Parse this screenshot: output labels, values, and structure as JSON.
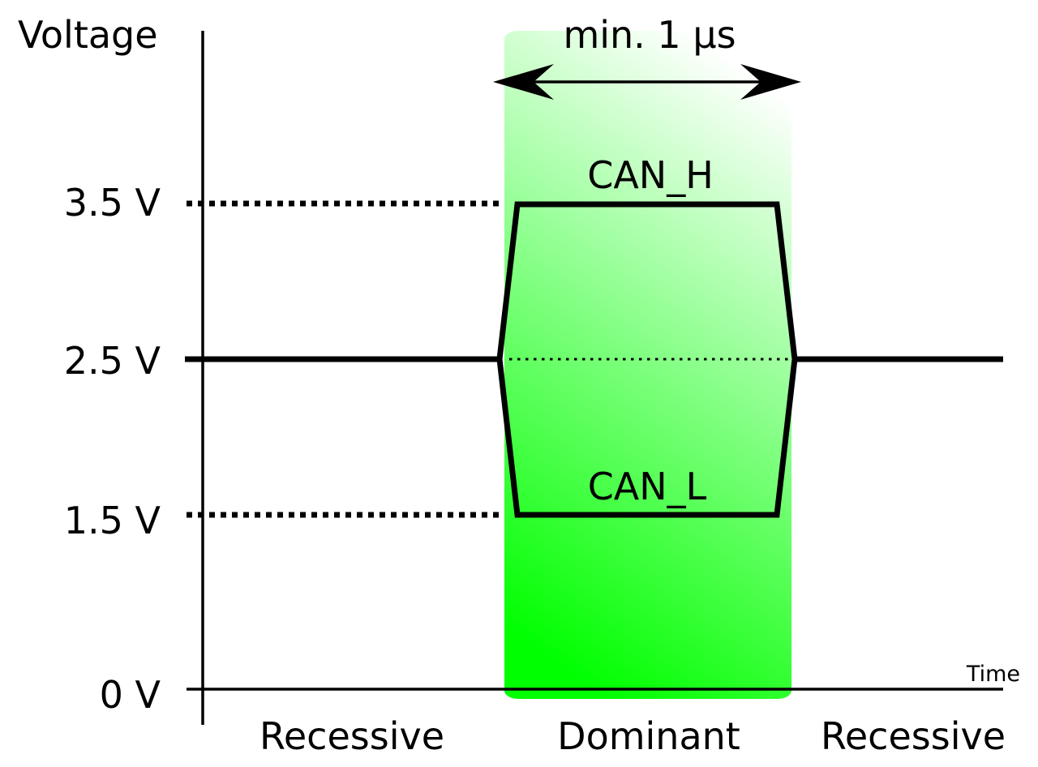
{
  "y_axis_label": "Voltage",
  "x_axis_label": "Time",
  "levels": [
    {
      "id": "3.5",
      "value": 3.5,
      "label": "3.5 V"
    },
    {
      "id": "2.5",
      "value": 2.5,
      "label": "2.5 V"
    },
    {
      "id": "1.5",
      "value": 1.5,
      "label": "1.5 V"
    },
    {
      "id": "0",
      "value": 0,
      "label": "0 V"
    }
  ],
  "duration_label": "min. 1 µs",
  "signals": {
    "high_label": "CAN_H",
    "low_label": "CAN_L"
  },
  "phases": [
    {
      "label": "Recessive"
    },
    {
      "label": "Dominant"
    },
    {
      "label": "Recessive"
    }
  ],
  "colors": {
    "dominant_bottom": "#00ff00",
    "dominant_top": "#ffffff",
    "line": "#000000"
  }
}
